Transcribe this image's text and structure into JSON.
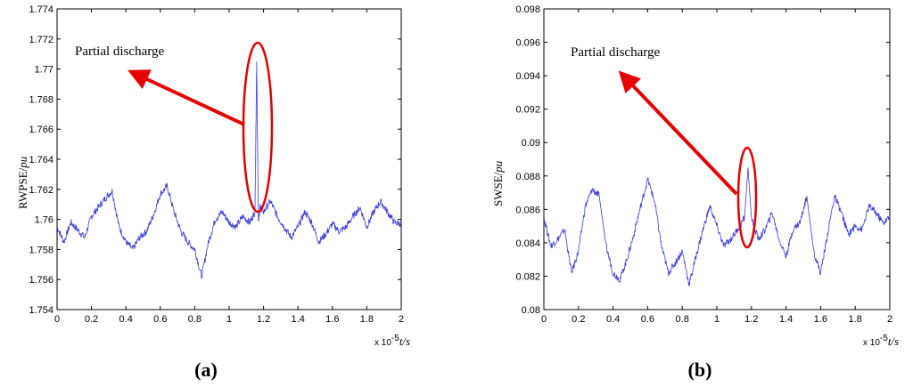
{
  "chart_data": [
    {
      "type": "line",
      "panel_label": "(a)",
      "ylabel_main": "RWPSE/",
      "ylabel_unit": "pu",
      "xlabel_exponent": "x 10",
      "xlabel_exponent_power": "-5",
      "xlabel_main": "t/s",
      "ylim": [
        1.754,
        1.774
      ],
      "xlim": [
        0,
        2
      ],
      "yticks": [
        "1.754",
        "1.756",
        "1.758",
        "1.76",
        "1.762",
        "1.764",
        "1.766",
        "1.768",
        "1.77",
        "1.772",
        "1.774"
      ],
      "xticks": [
        "0",
        "0.2",
        "0.4",
        "0.6",
        "0.8",
        "1",
        "1.2",
        "1.4",
        "1.6",
        "1.8",
        "2"
      ],
      "annotation": "Partial discharge",
      "series_color": "#3b3bdc",
      "highlight_color": "#e60000",
      "series": [
        {
          "x": [
            0,
            0.04,
            0.08,
            0.12,
            0.16,
            0.2,
            0.24,
            0.28,
            0.32,
            0.36,
            0.4,
            0.44,
            0.48,
            0.52,
            0.56,
            0.6,
            0.64,
            0.68,
            0.72,
            0.76,
            0.8,
            0.84,
            0.88,
            0.92,
            0.96,
            1.0,
            1.04,
            1.08,
            1.12,
            1.15,
            1.16,
            1.17,
            1.18,
            1.2,
            1.24,
            1.28,
            1.32,
            1.36,
            1.4,
            1.44,
            1.48,
            1.52,
            1.56,
            1.6,
            1.64,
            1.68,
            1.72,
            1.76,
            1.8,
            1.84,
            1.88,
            1.92,
            1.96,
            2.0
          ],
          "values": [
            1.7595,
            1.7585,
            1.7598,
            1.7593,
            1.7588,
            1.7602,
            1.7608,
            1.7614,
            1.7619,
            1.7595,
            1.7585,
            1.758,
            1.7588,
            1.7592,
            1.7603,
            1.7617,
            1.7622,
            1.7605,
            1.7592,
            1.7585,
            1.758,
            1.7562,
            1.7585,
            1.76,
            1.7605,
            1.7598,
            1.7595,
            1.7602,
            1.7598,
            1.7605,
            1.7705,
            1.76,
            1.7608,
            1.7605,
            1.7612,
            1.7602,
            1.7595,
            1.7588,
            1.7595,
            1.7605,
            1.7598,
            1.7585,
            1.759,
            1.7597,
            1.7592,
            1.7595,
            1.7602,
            1.7608,
            1.7595,
            1.7605,
            1.7612,
            1.7605,
            1.7598,
            1.7597
          ]
        }
      ]
    },
    {
      "type": "line",
      "panel_label": "(b)",
      "ylabel_main": "SWSE/",
      "ylabel_unit": "pu",
      "xlabel_exponent": "x 10",
      "xlabel_exponent_power": "-5",
      "xlabel_main": "t/s",
      "ylim": [
        0.08,
        0.098
      ],
      "xlim": [
        0,
        2
      ],
      "yticks": [
        "0.08",
        "0.082",
        "0.084",
        "0.086",
        "0.088",
        "0.09",
        "0.092",
        "0.094",
        "0.096",
        "0.098"
      ],
      "xticks": [
        "0",
        "0.2",
        "0.4",
        "0.6",
        "0.8",
        "1",
        "1.2",
        "1.4",
        "1.6",
        "1.8",
        "2"
      ],
      "annotation": "Partial discharge",
      "series_color": "#3b3bdc",
      "highlight_color": "#e60000",
      "series": [
        {
          "x": [
            0,
            0.04,
            0.08,
            0.12,
            0.16,
            0.2,
            0.24,
            0.28,
            0.32,
            0.36,
            0.4,
            0.44,
            0.48,
            0.52,
            0.56,
            0.6,
            0.64,
            0.68,
            0.72,
            0.76,
            0.8,
            0.84,
            0.88,
            0.92,
            0.96,
            1.0,
            1.04,
            1.08,
            1.12,
            1.16,
            1.18,
            1.2,
            1.24,
            1.28,
            1.32,
            1.36,
            1.4,
            1.44,
            1.48,
            1.52,
            1.56,
            1.6,
            1.64,
            1.68,
            1.72,
            1.76,
            1.8,
            1.84,
            1.88,
            1.92,
            1.96,
            2.0
          ],
          "values": [
            0.0855,
            0.0838,
            0.0842,
            0.0848,
            0.0822,
            0.0835,
            0.0862,
            0.0872,
            0.0868,
            0.0838,
            0.0822,
            0.0818,
            0.083,
            0.0845,
            0.0862,
            0.0878,
            0.0865,
            0.0838,
            0.0822,
            0.0828,
            0.0835,
            0.0815,
            0.0832,
            0.0848,
            0.0862,
            0.085,
            0.0838,
            0.0842,
            0.0848,
            0.0855,
            0.0885,
            0.0855,
            0.0842,
            0.0848,
            0.0858,
            0.0842,
            0.0832,
            0.0848,
            0.0852,
            0.0868,
            0.0835,
            0.0822,
            0.0845,
            0.0868,
            0.0858,
            0.0845,
            0.085,
            0.0848,
            0.0862,
            0.0858,
            0.0852,
            0.0855
          ]
        }
      ]
    }
  ]
}
